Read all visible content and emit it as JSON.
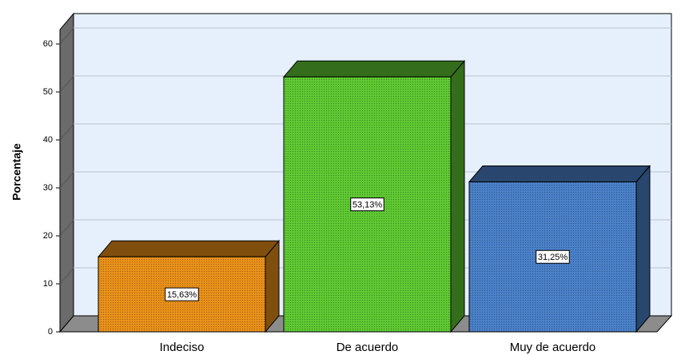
{
  "chart_data": {
    "type": "bar3d",
    "y_label": "Porcentaje",
    "categories": [
      "Indeciso",
      "De acuerdo",
      "Muy de acuerdo"
    ],
    "values": [
      15.63,
      53.13,
      31.25
    ],
    "value_labels": [
      "15,63%",
      "53,13%",
      "31,25%"
    ],
    "colors": [
      "#e8901a",
      "#5ec832",
      "#4a80c8"
    ],
    "ylim": [
      0,
      63
    ],
    "yticks": [
      0,
      10,
      20,
      30,
      40,
      50,
      60
    ],
    "grid": true
  }
}
